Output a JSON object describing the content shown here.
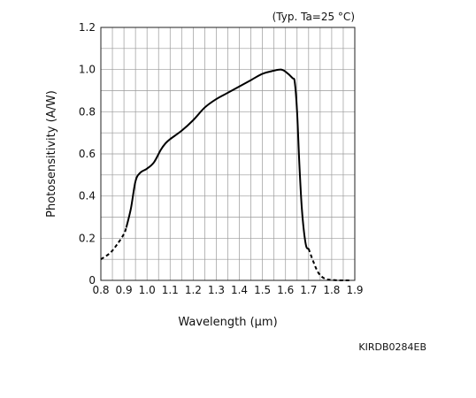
{
  "chart_data": {
    "type": "line",
    "title": "",
    "condition_note": "(Typ. Ta=25 °C)",
    "xlabel": "Wavelength (μm)",
    "ylabel": "Photosensitivity (A/W)",
    "xlim": [
      0.8,
      1.9
    ],
    "ylim": [
      0,
      1.2
    ],
    "x_ticks": [
      "0.8",
      "0.9",
      "1.0",
      "1.1",
      "1.2",
      "1.3",
      "1.4",
      "1.5",
      "1.6",
      "1.7",
      "1.8",
      "1.9"
    ],
    "y_ticks": [
      "0",
      "0.2",
      "0.4",
      "0.6",
      "0.8",
      "1.0",
      "1.2"
    ],
    "grid": true,
    "series": [
      {
        "style": "dashed",
        "x": [
          0.8,
          0.84,
          0.87,
          0.9,
          0.91
        ],
        "y": [
          0.1,
          0.13,
          0.17,
          0.22,
          0.25
        ]
      },
      {
        "style": "solid",
        "x": [
          0.91,
          0.93,
          0.95,
          0.97,
          1.0,
          1.03,
          1.06,
          1.08,
          1.1,
          1.15,
          1.2,
          1.25,
          1.3,
          1.35,
          1.4,
          1.45,
          1.5,
          1.55,
          1.58,
          1.6,
          1.63,
          1.64,
          1.65,
          1.66,
          1.67,
          1.68,
          1.69,
          1.7
        ],
        "y": [
          0.25,
          0.34,
          0.47,
          0.51,
          0.53,
          0.56,
          0.62,
          0.65,
          0.67,
          0.71,
          0.76,
          0.82,
          0.86,
          0.89,
          0.92,
          0.95,
          0.98,
          0.995,
          1.0,
          0.99,
          0.96,
          0.94,
          0.8,
          0.55,
          0.35,
          0.23,
          0.16,
          0.15
        ]
      },
      {
        "style": "dashed",
        "x": [
          1.7,
          1.72,
          1.74,
          1.76,
          1.78,
          1.8,
          1.83,
          1.86,
          1.88
        ],
        "y": [
          0.15,
          0.09,
          0.04,
          0.015,
          0.005,
          0.002,
          0.0,
          0.0,
          0.0
        ]
      }
    ]
  },
  "doc_code": "KIRDB0284EB"
}
